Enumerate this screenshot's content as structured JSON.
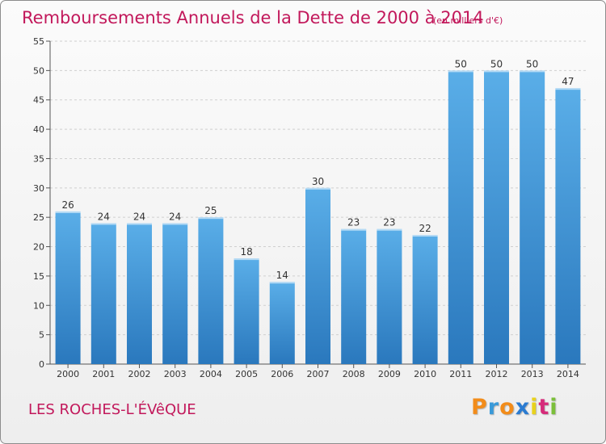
{
  "chart_data": {
    "type": "bar",
    "title": "Remboursements Annuels de la Dette de 2000 à 2014",
    "subtitle": "(en milliers d'€)",
    "categories": [
      "2000",
      "2001",
      "2002",
      "2003",
      "2004",
      "2005",
      "2006",
      "2007",
      "2008",
      "2009",
      "2010",
      "2011",
      "2012",
      "2013",
      "2014"
    ],
    "values": [
      26,
      24,
      24,
      24,
      25,
      18,
      14,
      30,
      23,
      23,
      22,
      50,
      50,
      50,
      47
    ],
    "ylim": [
      0,
      55
    ],
    "yticks": [
      0,
      5,
      10,
      15,
      20,
      25,
      30,
      35,
      40,
      45,
      50,
      55
    ],
    "grid": true,
    "bar_color_top": "#5aaee8",
    "bar_color_bottom": "#2a78bd"
  },
  "footer": {
    "commune": "LES ROCHES-L'ÉVêQUE",
    "logo": [
      "P",
      "r",
      "o",
      "x",
      "i",
      "t",
      "i"
    ],
    "logo_colors": [
      "#f28c1a",
      "#3a9ad9",
      "#f28c1a",
      "#2a7bd1",
      "#e8d21c",
      "#d62b7a",
      "#7bbf3a"
    ]
  }
}
